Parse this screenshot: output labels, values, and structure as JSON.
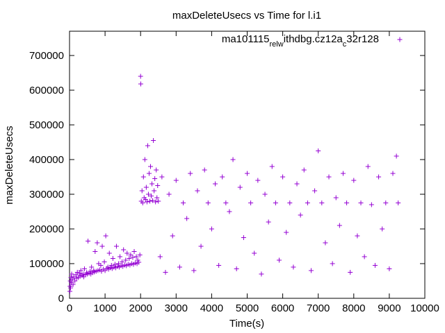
{
  "chart_data": {
    "type": "scatter",
    "title": "maxDeleteUsecs vs Time for l.i1",
    "xlabel": "Time(s)",
    "ylabel": "maxDeleteUsecs",
    "xlim": [
      0,
      10000
    ],
    "ylim": [
      0,
      770000
    ],
    "xticks": [
      0,
      1000,
      2000,
      3000,
      4000,
      5000,
      6000,
      7000,
      8000,
      9000,
      10000
    ],
    "yticks": [
      0,
      100000,
      200000,
      300000,
      400000,
      500000,
      600000,
      700000
    ],
    "grid": false,
    "legend_position": "top-right",
    "marker": "plus",
    "series": [
      {
        "name": "ma101115_rel_withdbg.cz12a_c32r128",
        "legend_parts": [
          {
            "text": "ma101115",
            "sub": false
          },
          {
            "text": "rel",
            "sub": true
          },
          {
            "text": "w",
            "sub": true
          },
          {
            "text": "ithdbg.cz12a",
            "sub": false
          },
          {
            "text": "c",
            "sub": true
          },
          {
            "text": "32r128",
            "sub": false
          }
        ],
        "color": "#9400d3",
        "points": [
          [
            10,
            20000
          ],
          [
            15,
            35000
          ],
          [
            20,
            50000
          ],
          [
            30,
            30000
          ],
          [
            40,
            60000
          ],
          [
            50,
            45000
          ],
          [
            60,
            70000
          ],
          [
            80,
            55000
          ],
          [
            100,
            40000
          ],
          [
            120,
            62000
          ],
          [
            150,
            50000
          ],
          [
            180,
            68000
          ],
          [
            200,
            58000
          ],
          [
            220,
            75000
          ],
          [
            250,
            60000
          ],
          [
            280,
            72000
          ],
          [
            300,
            64000
          ],
          [
            320,
            80000
          ],
          [
            350,
            66000
          ],
          [
            380,
            70000
          ],
          [
            400,
            62000
          ],
          [
            420,
            85000
          ],
          [
            450,
            68000
          ],
          [
            480,
            74000
          ],
          [
            500,
            70000
          ],
          [
            520,
            165000
          ],
          [
            550,
            72000
          ],
          [
            580,
            78000
          ],
          [
            600,
            70000
          ],
          [
            620,
            90000
          ],
          [
            650,
            74000
          ],
          [
            680,
            80000
          ],
          [
            700,
            76000
          ],
          [
            720,
            135000
          ],
          [
            750,
            78000
          ],
          [
            780,
            160000
          ],
          [
            800,
            80000
          ],
          [
            820,
            100000
          ],
          [
            850,
            82000
          ],
          [
            880,
            95000
          ],
          [
            900,
            78000
          ],
          [
            920,
            150000
          ],
          [
            950,
            84000
          ],
          [
            980,
            105000
          ],
          [
            1000,
            80000
          ],
          [
            1020,
            180000
          ],
          [
            1050,
            86000
          ],
          [
            1080,
            90000
          ],
          [
            1100,
            84000
          ],
          [
            1120,
            130000
          ],
          [
            1150,
            88000
          ],
          [
            1180,
            95000
          ],
          [
            1200,
            86000
          ],
          [
            1220,
            115000
          ],
          [
            1250,
            90000
          ],
          [
            1280,
            98000
          ],
          [
            1300,
            88000
          ],
          [
            1320,
            150000
          ],
          [
            1350,
            92000
          ],
          [
            1380,
            100000
          ],
          [
            1400,
            90000
          ],
          [
            1420,
            120000
          ],
          [
            1450,
            94000
          ],
          [
            1480,
            105000
          ],
          [
            1500,
            92000
          ],
          [
            1520,
            140000
          ],
          [
            1550,
            96000
          ],
          [
            1580,
            110000
          ],
          [
            1600,
            94000
          ],
          [
            1620,
            130000
          ],
          [
            1650,
            98000
          ],
          [
            1680,
            115000
          ],
          [
            1700,
            96000
          ],
          [
            1720,
            125000
          ],
          [
            1750,
            100000
          ],
          [
            1780,
            118000
          ],
          [
            1800,
            98000
          ],
          [
            1820,
            135000
          ],
          [
            1850,
            102000
          ],
          [
            1880,
            120000
          ],
          [
            1900,
            100000
          ],
          [
            1920,
            110000
          ],
          [
            1950,
            104000
          ],
          [
            1980,
            125000
          ],
          [
            2000,
            640000
          ],
          [
            2005,
            618000
          ],
          [
            2020,
            280000
          ],
          [
            2040,
            310000
          ],
          [
            2060,
            275000
          ],
          [
            2080,
            350000
          ],
          [
            2100,
            290000
          ],
          [
            2120,
            400000
          ],
          [
            2140,
            285000
          ],
          [
            2160,
            320000
          ],
          [
            2180,
            278000
          ],
          [
            2200,
            440000
          ],
          [
            2220,
            300000
          ],
          [
            2240,
            360000
          ],
          [
            2260,
            280000
          ],
          [
            2280,
            380000
          ],
          [
            2300,
            295000
          ],
          [
            2320,
            330000
          ],
          [
            2340,
            282000
          ],
          [
            2360,
            455000
          ],
          [
            2380,
            310000
          ],
          [
            2400,
            345000
          ],
          [
            2420,
            278000
          ],
          [
            2440,
            370000
          ],
          [
            2460,
            290000
          ],
          [
            2480,
            325000
          ],
          [
            2500,
            280000
          ],
          [
            2550,
            120000
          ],
          [
            2600,
            350000
          ],
          [
            2700,
            75000
          ],
          [
            2800,
            300000
          ],
          [
            2900,
            180000
          ],
          [
            3000,
            340000
          ],
          [
            3100,
            90000
          ],
          [
            3200,
            275000
          ],
          [
            3300,
            230000
          ],
          [
            3400,
            360000
          ],
          [
            3500,
            80000
          ],
          [
            3600,
            310000
          ],
          [
            3700,
            150000
          ],
          [
            3800,
            370000
          ],
          [
            3900,
            275000
          ],
          [
            4000,
            200000
          ],
          [
            4100,
            330000
          ],
          [
            4200,
            95000
          ],
          [
            4300,
            350000
          ],
          [
            4400,
            275000
          ],
          [
            4500,
            250000
          ],
          [
            4600,
            400000
          ],
          [
            4700,
            85000
          ],
          [
            4800,
            320000
          ],
          [
            4900,
            175000
          ],
          [
            5000,
            360000
          ],
          [
            5100,
            275000
          ],
          [
            5200,
            130000
          ],
          [
            5300,
            340000
          ],
          [
            5400,
            70000
          ],
          [
            5500,
            300000
          ],
          [
            5600,
            220000
          ],
          [
            5700,
            380000
          ],
          [
            5800,
            275000
          ],
          [
            5900,
            110000
          ],
          [
            6000,
            350000
          ],
          [
            6100,
            190000
          ],
          [
            6200,
            275000
          ],
          [
            6300,
            90000
          ],
          [
            6400,
            330000
          ],
          [
            6500,
            240000
          ],
          [
            6600,
            370000
          ],
          [
            6700,
            275000
          ],
          [
            6800,
            80000
          ],
          [
            6900,
            310000
          ],
          [
            7000,
            425000
          ],
          [
            7100,
            275000
          ],
          [
            7200,
            160000
          ],
          [
            7300,
            350000
          ],
          [
            7400,
            100000
          ],
          [
            7500,
            290000
          ],
          [
            7600,
            210000
          ],
          [
            7700,
            360000
          ],
          [
            7800,
            275000
          ],
          [
            7900,
            75000
          ],
          [
            8000,
            340000
          ],
          [
            8100,
            180000
          ],
          [
            8200,
            275000
          ],
          [
            8300,
            120000
          ],
          [
            8400,
            380000
          ],
          [
            8500,
            270000
          ],
          [
            8600,
            95000
          ],
          [
            8700,
            350000
          ],
          [
            8800,
            200000
          ],
          [
            8900,
            275000
          ],
          [
            9000,
            85000
          ],
          [
            9100,
            360000
          ],
          [
            9200,
            410000
          ],
          [
            9250,
            275000
          ]
        ]
      }
    ]
  }
}
